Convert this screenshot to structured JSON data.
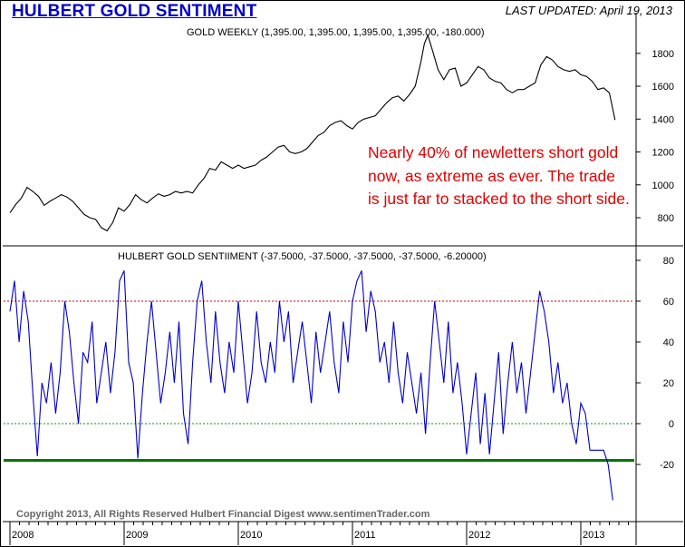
{
  "header": {
    "title": "HULBERT GOLD SENTIMENT",
    "last_updated": "LAST UPDATED:  April 19, 2013"
  },
  "annotation": "Nearly 40% of newletters short gold now, as extreme as ever.  The trade is just far to stacked to the short side.",
  "footer": {
    "copyright": "Copyright 2013, All Rights Reserved  Hulbert Financial Digest  www.sentimenTrader.com"
  },
  "chart_data": [
    {
      "type": "line",
      "title": "GOLD WEEKLY (1,395.00, 1,395.00, 1,395.00, 1,395.00, -180.000)",
      "ylim": [
        650,
        1950
      ],
      "yticks": [
        800,
        1000,
        1200,
        1400,
        1600,
        1800
      ],
      "x_range": [
        2008.0,
        2013.5
      ],
      "series": [
        {
          "x": [
            2008.0,
            2008.05,
            2008.1,
            2008.15,
            2008.2,
            2008.25,
            2008.3,
            2008.35,
            2008.4,
            2008.45,
            2008.5,
            2008.55,
            2008.6,
            2008.65,
            2008.7,
            2008.75,
            2008.8,
            2008.85,
            2008.9,
            2008.95,
            2009.0,
            2009.05,
            2009.1,
            2009.15,
            2009.2,
            2009.25,
            2009.3,
            2009.35,
            2009.4,
            2009.45,
            2009.5,
            2009.55,
            2009.6,
            2009.65,
            2009.7,
            2009.75,
            2009.8,
            2009.85,
            2009.9,
            2009.95,
            2010.0,
            2010.05,
            2010.1,
            2010.15,
            2010.2,
            2010.25,
            2010.3,
            2010.35,
            2010.4,
            2010.45,
            2010.5,
            2010.55,
            2010.6,
            2010.65,
            2010.7,
            2010.75,
            2010.8,
            2010.85,
            2010.9,
            2010.95,
            2011.0,
            2011.05,
            2011.1,
            2011.15,
            2011.2,
            2011.25,
            2011.3,
            2011.35,
            2011.4,
            2011.45,
            2011.5,
            2011.55,
            2011.6,
            2011.63,
            2011.66,
            2011.7,
            2011.75,
            2011.8,
            2011.85,
            2011.9,
            2011.95,
            2012.0,
            2012.05,
            2012.1,
            2012.15,
            2012.2,
            2012.25,
            2012.3,
            2012.35,
            2012.4,
            2012.45,
            2012.5,
            2012.55,
            2012.6,
            2012.65,
            2012.7,
            2012.75,
            2012.8,
            2012.85,
            2012.9,
            2012.95,
            2013.0,
            2013.05,
            2013.1,
            2013.15,
            2013.2,
            2013.25,
            2013.3
          ],
          "y": [
            830,
            880,
            920,
            985,
            960,
            930,
            875,
            900,
            920,
            940,
            925,
            900,
            860,
            820,
            800,
            790,
            740,
            720,
            770,
            860,
            840,
            880,
            940,
            910,
            890,
            920,
            945,
            930,
            940,
            960,
            950,
            960,
            950,
            1000,
            1040,
            1100,
            1090,
            1140,
            1120,
            1100,
            1120,
            1100,
            1110,
            1120,
            1150,
            1170,
            1200,
            1230,
            1240,
            1200,
            1190,
            1200,
            1220,
            1260,
            1300,
            1320,
            1360,
            1380,
            1390,
            1360,
            1340,
            1380,
            1400,
            1410,
            1420,
            1460,
            1500,
            1530,
            1540,
            1510,
            1550,
            1600,
            1750,
            1860,
            1910,
            1820,
            1700,
            1640,
            1700,
            1710,
            1600,
            1620,
            1670,
            1720,
            1700,
            1650,
            1630,
            1620,
            1580,
            1560,
            1580,
            1580,
            1600,
            1620,
            1730,
            1780,
            1760,
            1720,
            1700,
            1690,
            1700,
            1670,
            1660,
            1630,
            1580,
            1590,
            1560,
            1395
          ]
        }
      ]
    },
    {
      "type": "line",
      "title": "HULBERT GOLD SENTIIMENT (-37.5000, -37.5000, -37.5000, -37.5000, -6.20000)",
      "ylim": [
        -40,
        85
      ],
      "yticks": [
        -20,
        0,
        20,
        40,
        60,
        80
      ],
      "x_range": [
        2008.0,
        2013.5
      ],
      "x_ticks": [
        "2008",
        "2009",
        "2010",
        "2011",
        "2012",
        "2013"
      ],
      "reference_lines": [
        {
          "value": 60,
          "color": "#cc0000",
          "style": "dotted"
        },
        {
          "value": 0,
          "color": "#009900",
          "style": "dotted"
        },
        {
          "value": -18,
          "color": "#007700",
          "style": "solid"
        }
      ],
      "series": [
        {
          "x": [
            2008.0,
            2008.04,
            2008.08,
            2008.12,
            2008.16,
            2008.2,
            2008.24,
            2008.28,
            2008.32,
            2008.36,
            2008.4,
            2008.44,
            2008.48,
            2008.52,
            2008.56,
            2008.6,
            2008.64,
            2008.68,
            2008.72,
            2008.76,
            2008.8,
            2008.84,
            2008.88,
            2008.92,
            2008.96,
            2009.0,
            2009.04,
            2009.08,
            2009.12,
            2009.16,
            2009.2,
            2009.24,
            2009.28,
            2009.32,
            2009.36,
            2009.4,
            2009.44,
            2009.48,
            2009.52,
            2009.56,
            2009.6,
            2009.64,
            2009.68,
            2009.72,
            2009.76,
            2009.8,
            2009.84,
            2009.88,
            2009.92,
            2009.96,
            2010.0,
            2010.04,
            2010.08,
            2010.12,
            2010.16,
            2010.2,
            2010.24,
            2010.28,
            2010.32,
            2010.36,
            2010.4,
            2010.44,
            2010.48,
            2010.52,
            2010.56,
            2010.6,
            2010.64,
            2010.68,
            2010.72,
            2010.76,
            2010.8,
            2010.84,
            2010.88,
            2010.92,
            2010.96,
            2011.0,
            2011.04,
            2011.08,
            2011.12,
            2011.16,
            2011.2,
            2011.24,
            2011.28,
            2011.32,
            2011.36,
            2011.4,
            2011.44,
            2011.48,
            2011.52,
            2011.56,
            2011.6,
            2011.64,
            2011.68,
            2011.72,
            2011.76,
            2011.8,
            2011.84,
            2011.88,
            2011.92,
            2011.96,
            2012.0,
            2012.04,
            2012.08,
            2012.12,
            2012.16,
            2012.2,
            2012.24,
            2012.28,
            2012.32,
            2012.36,
            2012.4,
            2012.44,
            2012.48,
            2012.52,
            2012.56,
            2012.6,
            2012.64,
            2012.68,
            2012.72,
            2012.76,
            2012.8,
            2012.84,
            2012.88,
            2012.92,
            2012.96,
            2013.0,
            2013.04,
            2013.08,
            2013.12,
            2013.16,
            2013.2,
            2013.24,
            2013.28
          ],
          "y": [
            55,
            70,
            40,
            65,
            50,
            15,
            -16,
            20,
            10,
            30,
            5,
            25,
            60,
            45,
            20,
            0,
            35,
            30,
            50,
            10,
            25,
            40,
            15,
            35,
            70,
            75,
            30,
            20,
            -17,
            15,
            40,
            60,
            35,
            10,
            25,
            45,
            20,
            50,
            5,
            -10,
            30,
            60,
            70,
            40,
            20,
            55,
            30,
            15,
            40,
            25,
            60,
            35,
            10,
            25,
            55,
            30,
            20,
            40,
            25,
            60,
            40,
            55,
            20,
            35,
            50,
            30,
            10,
            45,
            25,
            40,
            55,
            30,
            15,
            50,
            30,
            60,
            70,
            75,
            45,
            65,
            55,
            30,
            40,
            20,
            50,
            25,
            10,
            35,
            20,
            5,
            25,
            -5,
            30,
            60,
            40,
            20,
            50,
            15,
            30,
            10,
            -15,
            5,
            25,
            -10,
            15,
            -15,
            10,
            35,
            -5,
            20,
            40,
            15,
            30,
            5,
            25,
            45,
            65,
            55,
            40,
            15,
            30,
            10,
            20,
            0,
            -10,
            10,
            5,
            -13,
            -13,
            -13,
            -13,
            -20,
            -37.5
          ]
        }
      ]
    }
  ]
}
